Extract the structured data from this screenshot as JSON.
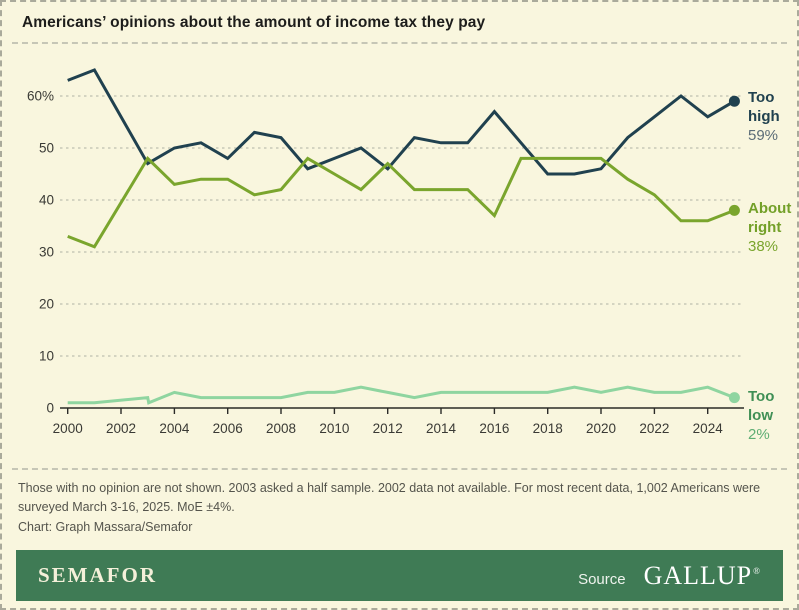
{
  "title": "Americans’ opinions about the amount of income tax they pay",
  "chart_data": {
    "type": "line",
    "title": "Americans’ opinions about the amount of income tax they pay",
    "grid": "horizontal-dashed",
    "legend_position": "right-end-of-lines",
    "x_axis": {
      "range": [
        2000,
        2025
      ],
      "ticks": [
        2000,
        2002,
        2004,
        2006,
        2008,
        2010,
        2012,
        2014,
        2016,
        2018,
        2020,
        2022,
        2024
      ]
    },
    "y_axis": {
      "range": [
        0,
        67
      ],
      "ticks": [
        {
          "label": "60%",
          "value": 60
        },
        {
          "label": "50",
          "value": 50
        },
        {
          "label": "40",
          "value": 40
        },
        {
          "label": "30",
          "value": 30
        },
        {
          "label": "20",
          "value": 20
        },
        {
          "label": "10",
          "value": 10
        },
        {
          "label": "0",
          "value": 0
        }
      ]
    },
    "years": [
      2000,
      2001,
      2003,
      2004,
      2005,
      2006,
      2007,
      2008,
      2009,
      2010,
      2011,
      2012,
      2013,
      2014,
      2015,
      2016,
      2017,
      2018,
      2019,
      2020,
      2021,
      2022,
      2023,
      2024,
      2025
    ],
    "series": [
      {
        "id": "too-high",
        "name": "Too high",
        "end_value_label": "59%",
        "color": "#20414f",
        "label_color": "#20414f",
        "value_color": "#5b6c77",
        "values": [
          63,
          65,
          47,
          50,
          51,
          48,
          53,
          52,
          46,
          48,
          50,
          46,
          52,
          51,
          51,
          57,
          51,
          45,
          45,
          46,
          52,
          56,
          60,
          56,
          59
        ]
      },
      {
        "id": "about-right",
        "name": "About right",
        "end_value_label": "38%",
        "color": "#7aa52d",
        "label_color": "#73a028",
        "value_color": "#7aa52d",
        "values": [
          33,
          31,
          48,
          43,
          44,
          44,
          41,
          42,
          48,
          45,
          42,
          47,
          42,
          42,
          42,
          37,
          48,
          48,
          48,
          48,
          44,
          41,
          36,
          36,
          38
        ]
      },
      {
        "id": "too-low",
        "name": "Too low",
        "end_value_label": "2%",
        "color": "#8fd5a0",
        "label_color": "#3f8f55",
        "value_color": "#5fae74",
        "step_2003": [
          2,
          1
        ],
        "values": [
          1,
          1,
          2,
          3,
          2,
          2,
          2,
          2,
          3,
          3,
          4,
          3,
          2,
          3,
          3,
          3,
          3,
          3,
          4,
          3,
          4,
          3,
          3,
          4,
          2
        ]
      }
    ]
  },
  "footnote": "Those with no opinion are not shown. 2003 asked a half sample. 2002 data not available. For most recent data, 1,002 Americans were surveyed March 3-16, 2025. MoE ±4%.",
  "credit": "Chart: Graph Massara/Semafor",
  "footer": {
    "brand": "SEMAFOR",
    "source_label": "Source",
    "source_brand": "GALLUP",
    "reg_mark": "®"
  }
}
